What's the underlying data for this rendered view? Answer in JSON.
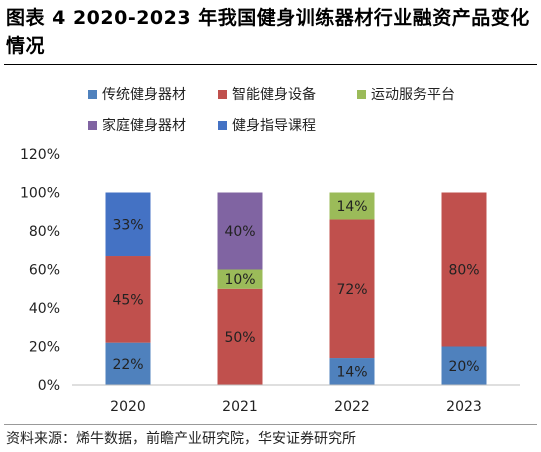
{
  "title": "图表 4 2020-2023 年我国健身训练器材行业融资产品变化情况",
  "source": "资料来源：烯牛数据，前瞻产业研究院，华安证券研究所",
  "chart_data": {
    "type": "bar",
    "stacked": true,
    "categories": [
      "2020",
      "2021",
      "2022",
      "2023"
    ],
    "series": [
      {
        "name": "传统健身器材",
        "color": "#4f81bd",
        "values": [
          22,
          0,
          14,
          20
        ]
      },
      {
        "name": "智能健身设备",
        "color": "#c0504d",
        "values": [
          45,
          50,
          72,
          80
        ]
      },
      {
        "name": "运动服务平台",
        "color": "#9bbb59",
        "values": [
          0,
          10,
          14,
          0
        ]
      },
      {
        "name": "家庭健身器材",
        "color": "#8064a2",
        "values": [
          0,
          40,
          0,
          0
        ]
      },
      {
        "name": "健身指导课程",
        "color": "#4472c4",
        "values": [
          33,
          0,
          0,
          0
        ]
      }
    ],
    "data_labels": true,
    "yticks": [
      "0%",
      "20%",
      "40%",
      "60%",
      "80%",
      "100%",
      "120%"
    ],
    "ylim": [
      0,
      120
    ],
    "legend_position": "top",
    "grid": false
  }
}
